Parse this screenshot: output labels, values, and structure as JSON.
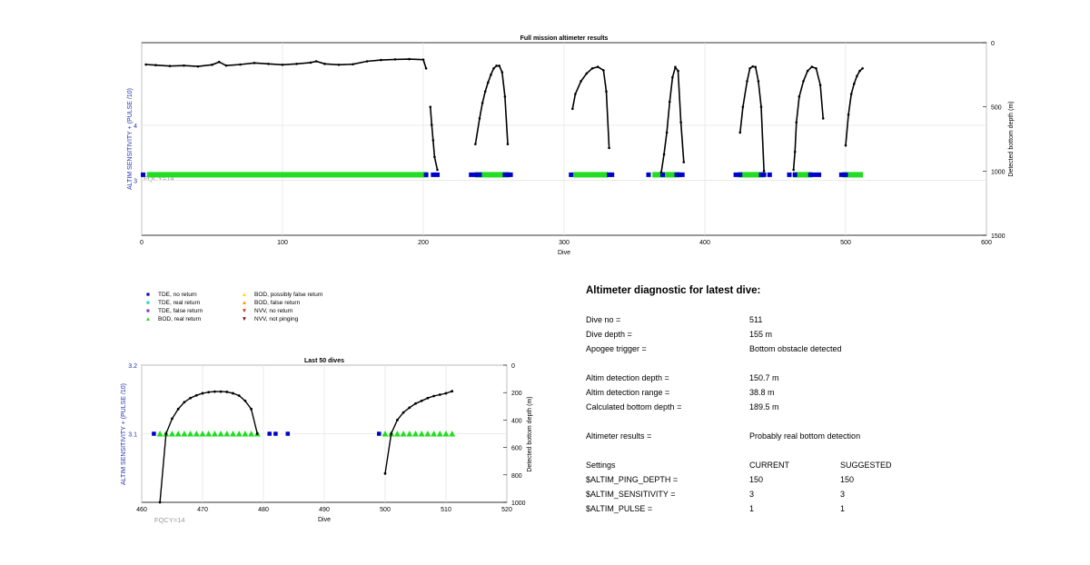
{
  "chart_data": [
    {
      "type": "line",
      "title": "Full mission altimeter results",
      "xlabel": "Dive",
      "ylabel": "ALTIM SENSITIVITY + (PULSE /10)",
      "y2label": "Detected bottom depth (m)",
      "xlim": [
        0,
        600
      ],
      "ylim": [
        2,
        5.5
      ],
      "y2lim": [
        1500,
        0
      ],
      "xticks": [
        0,
        100,
        200,
        300,
        400,
        500,
        600
      ],
      "yticks": [
        3,
        4
      ],
      "y2ticks": [
        0,
        500,
        1000,
        1500
      ],
      "grid": true,
      "annotation": "FQCY=14",
      "tde_no_return": [
        [
          1,
          3.1
        ],
        [
          202,
          3.1
        ],
        [
          207,
          3.1
        ],
        [
          210,
          3.1
        ],
        [
          234,
          3.1
        ],
        [
          237,
          3.1
        ],
        [
          240,
          3.1
        ],
        [
          258,
          3.1
        ],
        [
          260,
          3.1
        ],
        [
          262,
          3.1
        ],
        [
          305,
          3.1
        ],
        [
          332,
          3.1
        ],
        [
          334,
          3.1
        ],
        [
          360,
          3.1
        ],
        [
          370,
          3.1
        ],
        [
          380,
          3.1
        ],
        [
          382,
          3.1
        ],
        [
          384,
          3.1
        ],
        [
          422,
          3.1
        ],
        [
          425,
          3.1
        ],
        [
          440,
          3.1
        ],
        [
          442,
          3.1
        ],
        [
          446,
          3.1
        ],
        [
          460,
          3.1
        ],
        [
          464,
          3.1
        ],
        [
          475,
          3.1
        ],
        [
          478,
          3.1
        ],
        [
          481,
          3.1
        ],
        [
          497,
          3.1
        ],
        [
          500,
          3.1
        ]
      ],
      "bod_real_return_ranges": [
        [
          5,
          202
        ],
        [
          238,
          260
        ],
        [
          308,
          330
        ],
        [
          364,
          381
        ],
        [
          425,
          441
        ],
        [
          464,
          475
        ],
        [
          499,
          511
        ]
      ],
      "bottom_depth_segments": [
        [
          [
            3,
            170
          ],
          [
            10,
            175
          ],
          [
            20,
            182
          ],
          [
            30,
            178
          ],
          [
            40,
            185
          ],
          [
            50,
            172
          ],
          [
            55,
            150
          ],
          [
            60,
            178
          ],
          [
            70,
            170
          ],
          [
            80,
            158
          ],
          [
            90,
            165
          ],
          [
            100,
            172
          ],
          [
            110,
            165
          ],
          [
            120,
            155
          ],
          [
            124,
            145
          ],
          [
            130,
            165
          ],
          [
            140,
            172
          ],
          [
            150,
            168
          ],
          [
            160,
            145
          ],
          [
            170,
            135
          ],
          [
            180,
            130
          ],
          [
            190,
            128
          ],
          [
            200,
            132
          ],
          [
            202,
            200
          ]
        ],
        [
          [
            205,
            500
          ],
          [
            206,
            640
          ],
          [
            207,
            760
          ],
          [
            208,
            890
          ],
          [
            210,
            990
          ]
        ],
        [
          [
            237,
            790
          ],
          [
            240,
            590
          ],
          [
            242,
            470
          ],
          [
            244,
            380
          ],
          [
            246,
            310
          ],
          [
            248,
            250
          ],
          [
            250,
            200
          ],
          [
            252,
            180
          ],
          [
            254,
            180
          ],
          [
            256,
            230
          ],
          [
            258,
            420
          ],
          [
            260,
            790
          ]
        ],
        [
          [
            306,
            515
          ],
          [
            308,
            400
          ],
          [
            312,
            300
          ],
          [
            316,
            240
          ],
          [
            320,
            200
          ],
          [
            324,
            188
          ],
          [
            328,
            215
          ],
          [
            330,
            380
          ],
          [
            332,
            820
          ]
        ],
        [
          [
            369,
            1010
          ],
          [
            371,
            870
          ],
          [
            373,
            700
          ],
          [
            375,
            460
          ],
          [
            377,
            270
          ],
          [
            379,
            190
          ],
          [
            381,
            220
          ],
          [
            383,
            620
          ],
          [
            385,
            930
          ]
        ],
        [
          [
            425,
            700
          ],
          [
            427,
            500
          ],
          [
            430,
            300
          ],
          [
            432,
            200
          ],
          [
            434,
            185
          ],
          [
            436,
            190
          ],
          [
            438,
            300
          ],
          [
            440,
            500
          ],
          [
            442,
            1000
          ]
        ],
        [
          [
            463,
            990
          ],
          [
            464,
            850
          ],
          [
            465,
            620
          ],
          [
            467,
            420
          ],
          [
            470,
            300
          ],
          [
            473,
            220
          ],
          [
            476,
            188
          ],
          [
            479,
            200
          ],
          [
            482,
            330
          ],
          [
            484,
            590
          ]
        ],
        [
          [
            500,
            800
          ],
          [
            502,
            560
          ],
          [
            504,
            400
          ],
          [
            506,
            320
          ],
          [
            508,
            260
          ],
          [
            510,
            220
          ],
          [
            512,
            200
          ]
        ]
      ]
    },
    {
      "type": "line",
      "title": "Last 50 dives",
      "xlabel": "Dive",
      "ylabel": "ALTIM SENSITIVITY + (PULSE /10)",
      "y2label": "Detected bottom depth (m)",
      "xlim": [
        460,
        520
      ],
      "ylim": [
        3.0,
        3.2
      ],
      "y2lim": [
        1000,
        0
      ],
      "xticks": [
        460,
        470,
        480,
        490,
        500,
        510,
        520
      ],
      "yticks": [
        3.1,
        3.2
      ],
      "y2ticks": [
        0,
        200,
        400,
        600,
        800,
        1000
      ],
      "grid": true,
      "annotation": "FQCY=14",
      "tde_no_return": [
        [
          462,
          3.1
        ],
        [
          481,
          3.1
        ],
        [
          482,
          3.1
        ],
        [
          484,
          3.1
        ],
        [
          499,
          3.1
        ]
      ],
      "bod_real_return": [
        [
          463,
          3.1
        ],
        [
          464,
          3.1
        ],
        [
          465,
          3.1
        ],
        [
          466,
          3.1
        ],
        [
          467,
          3.1
        ],
        [
          468,
          3.1
        ],
        [
          469,
          3.1
        ],
        [
          470,
          3.1
        ],
        [
          471,
          3.1
        ],
        [
          472,
          3.1
        ],
        [
          473,
          3.1
        ],
        [
          474,
          3.1
        ],
        [
          475,
          3.1
        ],
        [
          476,
          3.1
        ],
        [
          477,
          3.1
        ],
        [
          478,
          3.1
        ],
        [
          479,
          3.1
        ],
        [
          500,
          3.1
        ],
        [
          501,
          3.1
        ],
        [
          502,
          3.1
        ],
        [
          503,
          3.1
        ],
        [
          504,
          3.1
        ],
        [
          505,
          3.1
        ],
        [
          506,
          3.1
        ],
        [
          507,
          3.1
        ],
        [
          508,
          3.1
        ],
        [
          509,
          3.1
        ],
        [
          510,
          3.1
        ],
        [
          511,
          3.1
        ]
      ],
      "bottom_depth_segments": [
        [
          [
            463,
            1000
          ],
          [
            464,
            500
          ],
          [
            465,
            390
          ],
          [
            466,
            320
          ],
          [
            467,
            270
          ],
          [
            468,
            240
          ],
          [
            469,
            220
          ],
          [
            470,
            205
          ],
          [
            471,
            197
          ],
          [
            472,
            193
          ],
          [
            473,
            193
          ],
          [
            474,
            195
          ],
          [
            475,
            205
          ],
          [
            476,
            222
          ],
          [
            477,
            260
          ],
          [
            478,
            320
          ],
          [
            479,
            500
          ]
        ],
        [
          [
            500,
            790
          ],
          [
            501,
            500
          ],
          [
            502,
            400
          ],
          [
            503,
            345
          ],
          [
            504,
            310
          ],
          [
            505,
            280
          ],
          [
            506,
            260
          ],
          [
            507,
            240
          ],
          [
            508,
            225
          ],
          [
            509,
            215
          ],
          [
            510,
            205
          ],
          [
            511,
            190
          ]
        ]
      ]
    }
  ],
  "legend": [
    {
      "label": "TDE, no return",
      "symbol": "square",
      "color": "#0000cc"
    },
    {
      "label": "TDE, real return",
      "symbol": "square",
      "color": "#33cccc"
    },
    {
      "label": "TDE, false return",
      "symbol": "square",
      "color": "#7f3fbf"
    },
    {
      "label": "BOD, real return",
      "symbol": "triangle-up",
      "color": "#22dd22"
    },
    {
      "label": "BOD, possibly false return",
      "symbol": "triangle-up",
      "color": "#ffdd00"
    },
    {
      "label": "BOD, false return",
      "symbol": "triangle-up",
      "color": "#ff9900"
    },
    {
      "label": "NVV, no return",
      "symbol": "triangle-down",
      "color": "#dd3311"
    },
    {
      "label": "NVV, not pinging",
      "symbol": "triangle-down",
      "color": "#7a1010"
    }
  ],
  "colors": {
    "axis_label": "#2233aa",
    "line": "#000000",
    "grid": "#e6e6e6",
    "annotation": "#999999"
  },
  "diagnostic": {
    "title": "Altimeter diagnostic for latest dive:",
    "rows": [
      [
        "Dive no =",
        "511",
        ""
      ],
      [
        "Dive depth =",
        "155 m",
        ""
      ],
      [
        "Apogee trigger =",
        "Bottom obstacle detected",
        ""
      ],
      [
        "Altim detection depth =",
        "150.7 m",
        ""
      ],
      [
        "Altim detection range =",
        "38.8 m",
        ""
      ],
      [
        "Calculated bottom depth =",
        "189.5 m",
        ""
      ],
      [
        "Altimeter results =",
        "Probably real bottom detection",
        ""
      ],
      [
        "Settings",
        "CURRENT",
        "SUGGESTED"
      ],
      [
        "$ALTIM_PING_DEPTH =",
        "150",
        "150"
      ],
      [
        "$ALTIM_SENSITIVITY =",
        "3",
        "3"
      ],
      [
        "$ALTIM_PULSE =",
        "1",
        "1"
      ]
    ]
  }
}
